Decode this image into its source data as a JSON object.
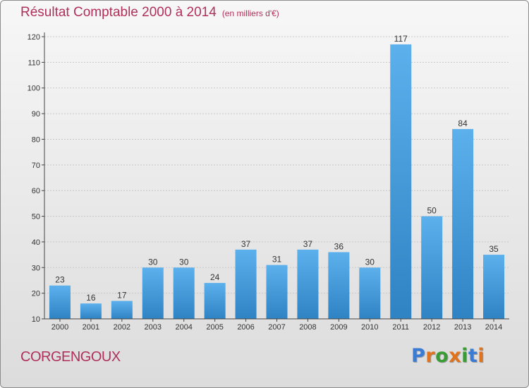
{
  "page": {
    "title": "Résultat Comptable 2000 à 2014",
    "subtitle": "(en milliers d'€)",
    "commune": "CORGENGOUX",
    "brand": "Proxiti",
    "colors": {
      "title": "#b0305a",
      "bar_light": "#5cb0ec",
      "bar_dark": "#2f83c3",
      "axis": "#444444",
      "grid": "#c8c8c8",
      "brand_letters": [
        "#3a7bd5",
        "#e2731a",
        "#3a9c34",
        "#e2731a",
        "#3a9c34",
        "#3a7bd5",
        "#e2731a"
      ]
    }
  },
  "chart_data": {
    "type": "bar",
    "title": "Résultat Comptable 2000 à 2014",
    "subtitle": "(en milliers d'€)",
    "xlabel": "",
    "ylabel": "",
    "categories": [
      "2000",
      "2001",
      "2002",
      "2003",
      "2004",
      "2005",
      "2006",
      "2007",
      "2008",
      "2009",
      "2010",
      "2011",
      "2012",
      "2013",
      "2014"
    ],
    "values": [
      23,
      16,
      17,
      30,
      30,
      24,
      37,
      31,
      37,
      36,
      30,
      117,
      50,
      84,
      35
    ],
    "ylim": [
      10,
      120
    ],
    "yticks": [
      10,
      20,
      30,
      40,
      50,
      60,
      70,
      80,
      90,
      100,
      110,
      120
    ],
    "grid": true,
    "data_labels": true
  }
}
